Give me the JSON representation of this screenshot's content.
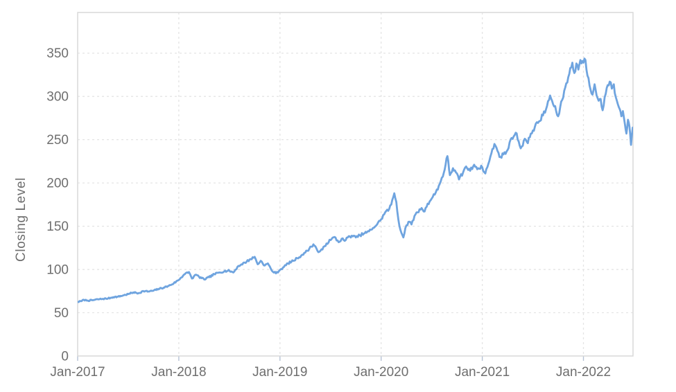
{
  "chart_data": {
    "type": "line",
    "title": "",
    "xlabel": "",
    "ylabel": "Closing Level",
    "grid": true,
    "legend": false,
    "xlim": [
      2017.0,
      2022.49
    ],
    "ylim": [
      0,
      397
    ],
    "yticks": [
      0,
      50,
      100,
      150,
      200,
      250,
      300,
      350
    ],
    "xticks": [
      {
        "label": "Jan-2017",
        "x": 2017
      },
      {
        "label": "Jan-2018",
        "x": 2018
      },
      {
        "label": "Jan-2019",
        "x": 2019
      },
      {
        "label": "Jan-2020",
        "x": 2020
      },
      {
        "label": "Jan-2021",
        "x": 2021
      },
      {
        "label": "Jan-2022",
        "x": 2022
      }
    ],
    "series": [
      {
        "name": "Closing Level",
        "color": "#6fa4df",
        "x": [
          2017.0,
          2017.04,
          2017.06,
          2017.1,
          2017.15,
          2017.2,
          2017.25,
          2017.3,
          2017.35,
          2017.4,
          2017.45,
          2017.5,
          2017.55,
          2017.6,
          2017.65,
          2017.7,
          2017.75,
          2017.8,
          2017.85,
          2017.9,
          2017.95,
          2018.0,
          2018.05,
          2018.1,
          2018.13,
          2018.17,
          2018.2,
          2018.25,
          2018.3,
          2018.35,
          2018.4,
          2018.45,
          2018.5,
          2018.54,
          2018.58,
          2018.62,
          2018.67,
          2018.71,
          2018.75,
          2018.78,
          2018.81,
          2018.85,
          2018.88,
          2018.92,
          2018.96,
          2019.0,
          2019.04,
          2019.08,
          2019.13,
          2019.17,
          2019.21,
          2019.25,
          2019.29,
          2019.33,
          2019.36,
          2019.38,
          2019.42,
          2019.46,
          2019.5,
          2019.54,
          2019.58,
          2019.61,
          2019.64,
          2019.67,
          2019.71,
          2019.75,
          2019.79,
          2019.83,
          2019.88,
          2019.92,
          2019.96,
          2020.0,
          2020.04,
          2020.08,
          2020.1,
          2020.13,
          2020.15,
          2020.17,
          2020.19,
          2020.22,
          2020.24,
          2020.27,
          2020.3,
          2020.33,
          2020.36,
          2020.4,
          2020.43,
          2020.46,
          2020.5,
          2020.54,
          2020.58,
          2020.62,
          2020.655,
          2020.68,
          2020.71,
          2020.74,
          2020.77,
          2020.81,
          2020.84,
          2020.88,
          2020.92,
          2020.96,
          2021.0,
          2021.03,
          2021.06,
          2021.09,
          2021.12,
          2021.15,
          2021.18,
          2021.21,
          2021.25,
          2021.29,
          2021.33,
          2021.36,
          2021.38,
          2021.42,
          2021.45,
          2021.48,
          2021.52,
          2021.56,
          2021.6,
          2021.63,
          2021.67,
          2021.7,
          2021.73,
          2021.75,
          2021.79,
          2021.83,
          2021.86,
          2021.89,
          2021.91,
          2021.93,
          2021.95,
          2021.97,
          2022.0,
          2022.02,
          2022.04,
          2022.07,
          2022.09,
          2022.11,
          2022.13,
          2022.15,
          2022.17,
          2022.19,
          2022.21,
          2022.24,
          2022.26,
          2022.28,
          2022.3,
          2022.32,
          2022.34,
          2022.36,
          2022.375,
          2022.39,
          2022.41,
          2022.425,
          2022.44,
          2022.455,
          2022.47,
          2022.48,
          2022.487
        ],
        "values": [
          62.5,
          63.5,
          65,
          64,
          64.5,
          65.5,
          66,
          66.5,
          68,
          68.5,
          70,
          71.5,
          73.5,
          72.5,
          75,
          74.5,
          75.5,
          77.5,
          79,
          81,
          84,
          88,
          94,
          97,
          89.5,
          94,
          91.5,
          88.5,
          91,
          94.5,
          96.5,
          98,
          98.5,
          96.5,
          103,
          106,
          109,
          112,
          114.5,
          106,
          110,
          104.5,
          107,
          98.5,
          95.5,
          99.5,
          103,
          107,
          110,
          113,
          116,
          119.5,
          124,
          129,
          124.5,
          120,
          123,
          130,
          134,
          137.5,
          131.5,
          135.5,
          133,
          137,
          139,
          137,
          139.5,
          141.5,
          144,
          148,
          152,
          158,
          166,
          170,
          175,
          188,
          178,
          158,
          146,
          137,
          148,
          155,
          152,
          162,
          166,
          171,
          167,
          176,
          182,
          189,
          199,
          212,
          231,
          209,
          217,
          212,
          204,
          212,
          219,
          214,
          221,
          217,
          218,
          211,
          222,
          234,
          245,
          237,
          230,
          233,
          238,
          252,
          258,
          248,
          240,
          251,
          246,
          257,
          265,
          271,
          278,
          285,
          301,
          291,
          283,
          277,
          296,
          315,
          326,
          339,
          327,
          338,
          331,
          342,
          339,
          342,
          324,
          308,
          302,
          314,
          301,
          295,
          297,
          284,
          299,
          313,
          317,
          309,
          314,
          299,
          291,
          285,
          277,
          283,
          268,
          257,
          273,
          265,
          244,
          256,
          264
        ]
      }
    ]
  },
  "colors": {
    "grid": "#e4e4e4",
    "border": "#d9d9d9",
    "tick": "#b6c2d5",
    "text": "#6e6e6e",
    "background": "#ffffff"
  }
}
